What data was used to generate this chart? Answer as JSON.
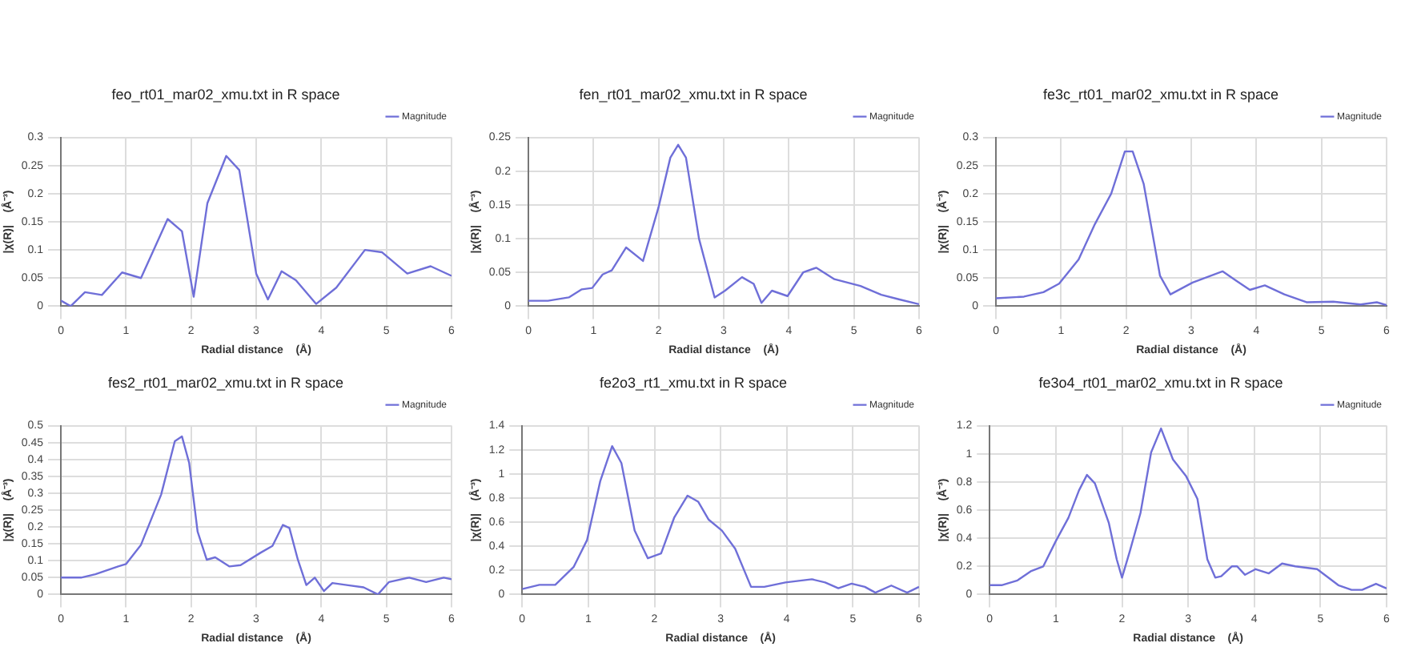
{
  "chart_data": [
    {
      "type": "line",
      "title": "feo_rt01_mar02_xmu.txt in R space",
      "xlabel": "Radial distance    (Å)",
      "ylabel": "|χ(R)|    (Å⁻³)",
      "xlim": [
        0,
        6
      ],
      "xticks": [
        0,
        1,
        2,
        3,
        4,
        5,
        6
      ],
      "ylim": [
        0,
        0.3
      ],
      "yticks": [
        0,
        0.05,
        0.1,
        0.15,
        0.2,
        0.25,
        0.3
      ],
      "grid": true,
      "legend": "top right",
      "marker": "none",
      "series": [
        {
          "name": "Magnitude",
          "color": "#6f6fd8",
          "x": [
            0,
            0.15,
            0.37,
            0.63,
            0.94,
            1.23,
            1.64,
            1.86,
            2.04,
            2.25,
            2.54,
            2.74,
            3.0,
            3.18,
            3.39,
            3.61,
            3.92,
            4.23,
            4.67,
            4.93,
            5.32,
            5.68,
            6.0
          ],
          "values": [
            0.01,
            0.0,
            0.025,
            0.02,
            0.06,
            0.05,
            0.155,
            0.133,
            0.017,
            0.183,
            0.267,
            0.242,
            0.058,
            0.012,
            0.062,
            0.046,
            0.004,
            0.033,
            0.1,
            0.096,
            0.058,
            0.071,
            0.054
          ]
        }
      ]
    },
    {
      "type": "line",
      "title": "fen_rt01_mar02_xmu.txt in R space",
      "xlabel": "Radial distance    (Å)",
      "ylabel": "|χ(R)|    (Å⁻³)",
      "xlim": [
        0,
        6
      ],
      "xticks": [
        0,
        1,
        2,
        3,
        4,
        5,
        6
      ],
      "ylim": [
        0,
        0.25
      ],
      "yticks": [
        0,
        0.05,
        0.1,
        0.15,
        0.2,
        0.25
      ],
      "grid": true,
      "legend": "top right",
      "marker": "none",
      "series": [
        {
          "name": "Magnitude",
          "color": "#6f6fd8",
          "x": [
            0,
            0.3,
            0.62,
            0.82,
            0.98,
            1.14,
            1.28,
            1.5,
            1.76,
            2.0,
            2.18,
            2.3,
            2.42,
            2.62,
            2.86,
            3.02,
            3.28,
            3.46,
            3.58,
            3.74,
            3.98,
            4.22,
            4.42,
            4.7,
            5.1,
            5.42,
            5.7,
            6.0
          ],
          "values": [
            0.008,
            0.008,
            0.013,
            0.025,
            0.027,
            0.047,
            0.053,
            0.087,
            0.067,
            0.147,
            0.22,
            0.239,
            0.22,
            0.1,
            0.013,
            0.023,
            0.043,
            0.033,
            0.005,
            0.023,
            0.015,
            0.05,
            0.057,
            0.04,
            0.03,
            0.017,
            0.01,
            0.003
          ]
        }
      ]
    },
    {
      "type": "line",
      "title": "fe3c_rt01_mar02_xmu.txt in R space",
      "xlabel": "Radial distance    (Å)",
      "ylabel": "|χ(R)|    (Å⁻³)",
      "xlim": [
        0,
        6
      ],
      "xticks": [
        0,
        1,
        2,
        3,
        4,
        5,
        6
      ],
      "ylim": [
        0,
        0.3
      ],
      "yticks": [
        0,
        0.05,
        0.1,
        0.15,
        0.2,
        0.25,
        0.3
      ],
      "grid": true,
      "legend": "top right",
      "marker": "none",
      "series": [
        {
          "name": "Magnitude",
          "color": "#6f6fd8",
          "x": [
            0,
            0.43,
            0.73,
            0.97,
            1.27,
            1.52,
            1.77,
            1.98,
            2.1,
            2.27,
            2.52,
            2.68,
            3.02,
            3.48,
            3.68,
            3.9,
            4.13,
            4.43,
            4.77,
            5.18,
            5.6,
            5.85,
            6.0
          ],
          "values": [
            0.014,
            0.017,
            0.025,
            0.04,
            0.083,
            0.146,
            0.2,
            0.275,
            0.275,
            0.217,
            0.054,
            0.021,
            0.042,
            0.062,
            0.046,
            0.029,
            0.037,
            0.021,
            0.007,
            0.008,
            0.003,
            0.007,
            0.002
          ]
        }
      ]
    },
    {
      "type": "line",
      "title": "fes2_rt01_mar02_xmu.txt in R space",
      "xlabel": "Radial distance    (Å)",
      "ylabel": "|χ(R)|    (Å⁻³)",
      "xlim": [
        0,
        6
      ],
      "xticks": [
        0,
        1,
        2,
        3,
        4,
        5,
        6
      ],
      "ylim": [
        0,
        0.5
      ],
      "yticks": [
        0,
        0.05,
        0.1,
        0.15,
        0.2,
        0.25,
        0.3,
        0.35,
        0.4,
        0.45,
        0.5
      ],
      "grid": true,
      "legend": "top right",
      "marker": "none",
      "series": [
        {
          "name": "Magnitude",
          "color": "#6f6fd8",
          "x": [
            0,
            0.31,
            0.53,
            0.88,
            1.0,
            1.23,
            1.54,
            1.75,
            1.86,
            1.97,
            2.1,
            2.24,
            2.37,
            2.59,
            2.76,
            3.07,
            3.25,
            3.41,
            3.51,
            3.64,
            3.77,
            3.9,
            4.04,
            4.17,
            4.39,
            4.65,
            4.87,
            5.04,
            5.35,
            5.61,
            5.88,
            6.0
          ],
          "values": [
            0.05,
            0.05,
            0.06,
            0.083,
            0.09,
            0.147,
            0.296,
            0.454,
            0.468,
            0.39,
            0.186,
            0.103,
            0.11,
            0.083,
            0.087,
            0.124,
            0.144,
            0.206,
            0.197,
            0.103,
            0.028,
            0.05,
            0.01,
            0.034,
            0.028,
            0.021,
            0.0,
            0.037,
            0.05,
            0.037,
            0.05,
            0.045
          ]
        }
      ]
    },
    {
      "type": "line",
      "title": "fe2o3_rt1_xmu.txt in R space",
      "xlabel": "Radial distance    (Å)",
      "ylabel": "|χ(R)|    (Å⁻³)",
      "xlim": [
        0,
        6
      ],
      "xticks": [
        0,
        1,
        2,
        3,
        4,
        5,
        6
      ],
      "ylim": [
        0,
        1.4
      ],
      "yticks": [
        0,
        0.2,
        0.4,
        0.6,
        0.8,
        1,
        1.2,
        1.4
      ],
      "grid": true,
      "legend": "top right",
      "marker": "none",
      "series": [
        {
          "name": "Magnitude",
          "color": "#6f6fd8",
          "x": [
            0,
            0.26,
            0.5,
            0.78,
            0.98,
            1.18,
            1.36,
            1.5,
            1.7,
            1.9,
            2.1,
            2.3,
            2.5,
            2.66,
            2.82,
            3.02,
            3.22,
            3.46,
            3.66,
            3.98,
            4.38,
            4.58,
            4.78,
            4.98,
            5.18,
            5.34,
            5.58,
            5.82,
            6.0
          ],
          "values": [
            0.045,
            0.08,
            0.08,
            0.23,
            0.45,
            0.94,
            1.23,
            1.09,
            0.53,
            0.3,
            0.34,
            0.64,
            0.82,
            0.77,
            0.62,
            0.53,
            0.38,
            0.063,
            0.063,
            0.1,
            0.126,
            0.1,
            0.052,
            0.09,
            0.063,
            0.015,
            0.074,
            0.015,
            0.063
          ]
        }
      ]
    },
    {
      "type": "line",
      "title": "fe3o4_rt01_mar02_xmu.txt in R space",
      "xlabel": "Radial distance    (Å)",
      "ylabel": "|χ(R)|    (Å⁻³)",
      "xlim": [
        0,
        6
      ],
      "xticks": [
        0,
        1,
        2,
        3,
        4,
        5,
        6
      ],
      "ylim": [
        0,
        1.2
      ],
      "yticks": [
        0,
        0.2,
        0.4,
        0.6,
        0.8,
        1,
        1.2
      ],
      "grid": true,
      "legend": "top right",
      "marker": "none",
      "series": [
        {
          "name": "Magnitude",
          "color": "#6f6fd8",
          "x": [
            0,
            0.18,
            0.42,
            0.62,
            0.81,
            1.0,
            1.19,
            1.35,
            1.47,
            1.59,
            1.8,
            1.92,
            2.0,
            2.12,
            2.28,
            2.44,
            2.59,
            2.77,
            2.97,
            3.14,
            3.29,
            3.41,
            3.5,
            3.66,
            3.74,
            3.86,
            4.02,
            4.22,
            4.42,
            4.62,
            4.95,
            5.27,
            5.47,
            5.63,
            5.84,
            6.0
          ],
          "values": [
            0.066,
            0.066,
            0.1,
            0.165,
            0.2,
            0.38,
            0.545,
            0.74,
            0.85,
            0.79,
            0.51,
            0.25,
            0.12,
            0.31,
            0.58,
            1.01,
            1.18,
            0.96,
            0.84,
            0.68,
            0.25,
            0.12,
            0.13,
            0.2,
            0.2,
            0.14,
            0.18,
            0.15,
            0.22,
            0.2,
            0.18,
            0.066,
            0.033,
            0.033,
            0.076,
            0.043
          ]
        }
      ]
    }
  ]
}
